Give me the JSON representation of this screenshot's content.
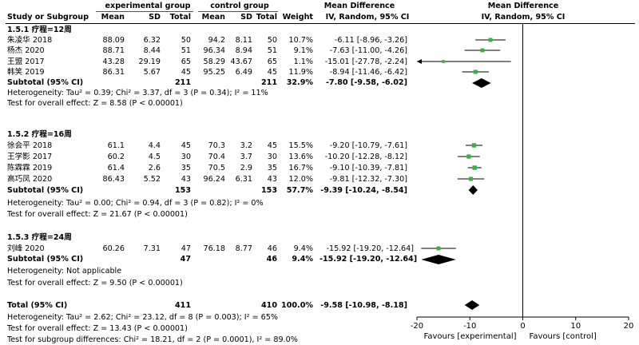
{
  "headers": {
    "study": "Study or Subgroup",
    "group1": "experimental group",
    "group2": "control group",
    "mean": "Mean",
    "sd": "SD",
    "total": "Total",
    "weight": "Weight",
    "md": "Mean Difference",
    "md_sub": "IV, Random, 95% CI",
    "plot_title": "Mean Difference",
    "plot_sub": "IV, Random, 95% CI"
  },
  "subgroups": [
    {
      "title": "1.5.1 疗程=12周",
      "studies": [
        {
          "name": "朱凌华 2018",
          "e_mean": "88.09",
          "e_sd": "6.32",
          "e_total": "50",
          "c_mean": "94.2",
          "c_sd": "8.11",
          "c_total": "50",
          "weight": "10.7%",
          "ci": "-6.11 [-8.96, -3.26]"
        },
        {
          "name": "杨杰 2020",
          "e_mean": "88.71",
          "e_sd": "8.44",
          "e_total": "51",
          "c_mean": "96.34",
          "c_sd": "8.94",
          "c_total": "51",
          "weight": "9.1%",
          "ci": "-7.63 [-11.00, -4.26]"
        },
        {
          "name": "王盟 2017",
          "e_mean": "43.28",
          "e_sd": "29.19",
          "e_total": "65",
          "c_mean": "58.29",
          "c_sd": "43.67",
          "c_total": "65",
          "weight": "1.1%",
          "ci": "-15.01 [-27.78, -2.24]"
        },
        {
          "name": "韩笑 2019",
          "e_mean": "86.31",
          "e_sd": "5.67",
          "e_total": "45",
          "c_mean": "95.25",
          "c_sd": "6.49",
          "c_total": "45",
          "weight": "11.9%",
          "ci": "-8.94 [-11.46, -6.42]"
        }
      ],
      "subtotal": {
        "label": "Subtotal (95% CI)",
        "e_total": "211",
        "c_total": "211",
        "weight": "32.9%",
        "ci": "-7.80 [-9.58, -6.02]"
      },
      "heterogeneity": "Heterogeneity: Tau² = 0.39; Chi² = 3.37, df = 3 (P = 0.34); I² = 11%",
      "overall": "Test for overall effect: Z = 8.58 (P < 0.00001)"
    },
    {
      "title": "1.5.2 疗程=16周",
      "studies": [
        {
          "name": "徐会平 2018",
          "e_mean": "61.1",
          "e_sd": "4.4",
          "e_total": "45",
          "c_mean": "70.3",
          "c_sd": "3.2",
          "c_total": "45",
          "weight": "15.5%",
          "ci": "-9.20 [-10.79, -7.61]"
        },
        {
          "name": "王学影 2017",
          "e_mean": "60.2",
          "e_sd": "4.5",
          "e_total": "30",
          "c_mean": "70.4",
          "c_sd": "3.7",
          "c_total": "30",
          "weight": "13.6%",
          "ci": "-10.20 [-12.28, -8.12]"
        },
        {
          "name": "陈霖霖 2019",
          "e_mean": "61.4",
          "e_sd": "2.6",
          "e_total": "35",
          "c_mean": "70.5",
          "c_sd": "2.9",
          "c_total": "35",
          "weight": "16.7%",
          "ci": "-9.10 [-10.39, -7.81]"
        },
        {
          "name": "高巧凤 2020",
          "e_mean": "86.43",
          "e_sd": "5.52",
          "e_total": "43",
          "c_mean": "96.24",
          "c_sd": "6.31",
          "c_total": "43",
          "weight": "12.0%",
          "ci": "-9.81 [-12.32, -7.30]"
        }
      ],
      "subtotal": {
        "label": "Subtotal (95% CI)",
        "e_total": "153",
        "c_total": "153",
        "weight": "57.7%",
        "ci": "-9.39 [-10.24, -8.54]"
      },
      "heterogeneity": "Heterogeneity: Tau² = 0.00; Chi² = 0.94, df = 3 (P = 0.82); I² = 0%",
      "overall": "Test for overall effect: Z = 21.67 (P < 0.00001)"
    },
    {
      "title": "1.5.3 疗程=24周",
      "studies": [
        {
          "name": "刘峰 2020",
          "e_mean": "60.26",
          "e_sd": "7.31",
          "e_total": "47",
          "c_mean": "76.18",
          "c_sd": "8.77",
          "c_total": "46",
          "weight": "9.4%",
          "ci": "-15.92 [-19.20, -12.64]"
        }
      ],
      "subtotal": {
        "label": "Subtotal (95% CI)",
        "e_total": "47",
        "c_total": "46",
        "weight": "9.4%",
        "ci": "-15.92 [-19.20, -12.64]"
      },
      "heterogeneity": "Heterogeneity: Not applicable",
      "overall": "Test for overall effect: Z = 9.50 (P < 0.00001)"
    }
  ],
  "total": {
    "label": "Total (95% CI)",
    "e_total": "411",
    "c_total": "410",
    "weight": "100.0%",
    "ci": "-9.58 [-10.98, -8.18]"
  },
  "footer": {
    "heterogeneity": "Heterogeneity: Tau² = 2.62; Chi² = 23.12, df = 8 (P = 0.003); I² = 65%",
    "overall": "Test for overall effect: Z = 13.43 (P < 0.00001)",
    "subgroup": "Test for subgroup differences: Chi² = 18.21, df = 2 (P = 0.0001), I² = 89.0%"
  },
  "axis": {
    "favours_left": "Favours [experimental]",
    "favours_right": "Favours [control]"
  },
  "colors": {
    "point": "#3cb043",
    "line": "#000000"
  },
  "chart_data": {
    "type": "forest",
    "xlim": [
      -20,
      20
    ],
    "ticks": [
      -20,
      -10,
      0,
      10,
      20
    ],
    "tick_labels": [
      "-20",
      "-10",
      "0",
      "10",
      "20"
    ],
    "studies": [
      {
        "name": "朱凌华 2018",
        "md": -6.11,
        "lo": -8.96,
        "hi": -3.26,
        "weight": 10.7
      },
      {
        "name": "杨杰 2020",
        "md": -7.63,
        "lo": -11.0,
        "hi": -4.26,
        "weight": 9.1
      },
      {
        "name": "王盟 2017",
        "md": -15.01,
        "lo": -27.78,
        "hi": -2.24,
        "weight": 1.1
      },
      {
        "name": "韩笑 2019",
        "md": -8.94,
        "lo": -11.46,
        "hi": -6.42,
        "weight": 11.9
      },
      {
        "name": "徐会平 2018",
        "md": -9.2,
        "lo": -10.79,
        "hi": -7.61,
        "weight": 15.5
      },
      {
        "name": "王学影 2017",
        "md": -10.2,
        "lo": -12.28,
        "hi": -8.12,
        "weight": 13.6
      },
      {
        "name": "陈霖霖 2019",
        "md": -9.1,
        "lo": -10.39,
        "hi": -7.81,
        "weight": 16.7
      },
      {
        "name": "高巧凤 2020",
        "md": -9.81,
        "lo": -12.32,
        "hi": -7.3,
        "weight": 12.0
      },
      {
        "name": "刘峰 2020",
        "md": -15.92,
        "lo": -19.2,
        "hi": -12.64,
        "weight": 9.4
      }
    ],
    "diamonds": [
      {
        "name": "Subtotal 1.5.1",
        "md": -7.8,
        "lo": -9.58,
        "hi": -6.02
      },
      {
        "name": "Subtotal 1.5.2",
        "md": -9.39,
        "lo": -10.24,
        "hi": -8.54
      },
      {
        "name": "Subtotal 1.5.3",
        "md": -15.92,
        "lo": -19.2,
        "hi": -12.64
      },
      {
        "name": "Total",
        "md": -9.58,
        "lo": -10.98,
        "hi": -8.18
      }
    ]
  }
}
